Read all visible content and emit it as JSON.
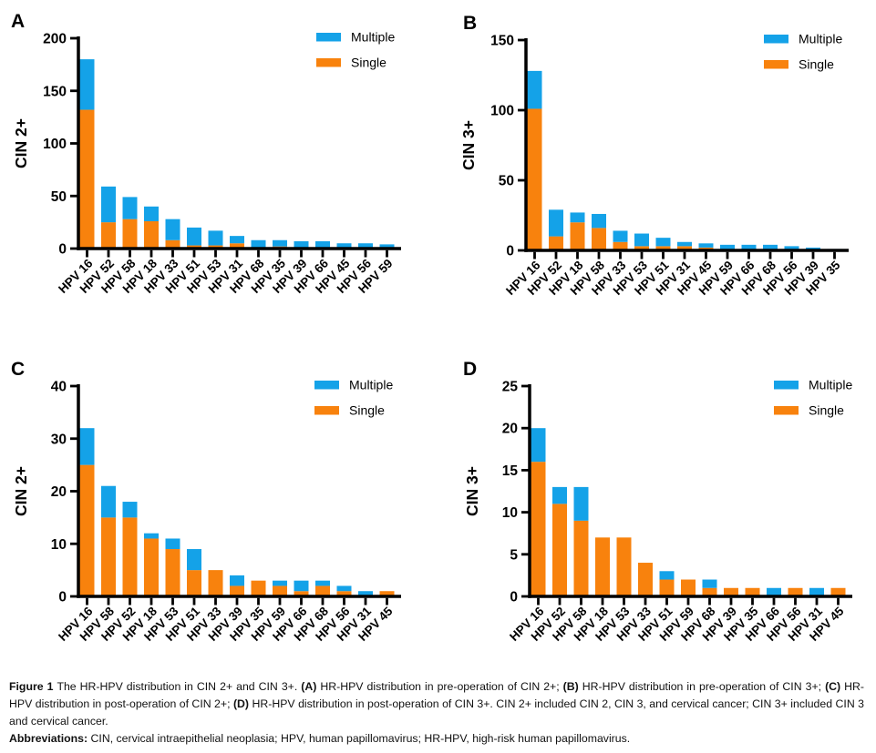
{
  "colors": {
    "multiple": "#14A2E8",
    "single": "#F8820D",
    "axis": "#000000",
    "background": "#FFFFFF",
    "text": "#000000"
  },
  "legend": {
    "items": [
      {
        "label": "Multiple",
        "color": "#14A2E8"
      },
      {
        "label": "Single",
        "color": "#F8820D"
      }
    ]
  },
  "chart_data": [
    {
      "panel": "A",
      "type": "bar",
      "stacked": true,
      "ylabel": "CIN 2+",
      "xlabel": "",
      "ylim": [
        0,
        200
      ],
      "yticks": [
        0,
        50,
        100,
        150,
        200
      ],
      "grid": false,
      "legend": [
        "Multiple",
        "Single"
      ],
      "legend_position": "top-right",
      "categories": [
        "HPV 16",
        "HPV 52",
        "HPV 58",
        "HPV 18",
        "HPV 33",
        "HPV 51",
        "HPV 53",
        "HPV 31",
        "HPV 68",
        "HPV 35",
        "HPV 39",
        "HPV 66",
        "HPV 45",
        "HPV 56",
        "HPV 59"
      ],
      "series": [
        {
          "name": "Single",
          "color": "#F8820D",
          "values": [
            132,
            25,
            28,
            26,
            8,
            3,
            3,
            5,
            0,
            2,
            0,
            0,
            1,
            1,
            0
          ]
        },
        {
          "name": "Multiple",
          "color": "#14A2E8",
          "values": [
            48,
            34,
            21,
            14,
            20,
            17,
            14,
            7,
            8,
            6,
            7,
            7,
            4,
            4,
            4
          ]
        }
      ],
      "totals": [
        180,
        59,
        49,
        40,
        28,
        20,
        17,
        12,
        8,
        8,
        7,
        7,
        5,
        5,
        4
      ]
    },
    {
      "panel": "B",
      "type": "bar",
      "stacked": true,
      "ylabel": "CIN 3+",
      "xlabel": "",
      "ylim": [
        0,
        150
      ],
      "yticks": [
        0,
        50,
        100,
        150
      ],
      "grid": false,
      "legend": [
        "Multiple",
        "Single"
      ],
      "legend_position": "top-right",
      "categories": [
        "HPV 16",
        "HPV 52",
        "HPV 18",
        "HPV 58",
        "HPV 33",
        "HPV 53",
        "HPV 51",
        "HPV 31",
        "HPV 45",
        "HPV 59",
        "HPV 66",
        "HPV 68",
        "HPV 56",
        "HPV 39",
        "HPV 35"
      ],
      "series": [
        {
          "name": "Single",
          "color": "#F8820D",
          "values": [
            101,
            10,
            20,
            16,
            6,
            3,
            3,
            3,
            2,
            1,
            0,
            0,
            0,
            0,
            0
          ]
        },
        {
          "name": "Multiple",
          "color": "#14A2E8",
          "values": [
            27,
            19,
            7,
            10,
            8,
            9,
            6,
            3,
            3,
            3,
            4,
            4,
            3,
            2,
            1
          ]
        }
      ],
      "totals": [
        128,
        29,
        27,
        26,
        14,
        12,
        9,
        6,
        5,
        4,
        4,
        4,
        3,
        2,
        1
      ]
    },
    {
      "panel": "C",
      "type": "bar",
      "stacked": true,
      "ylabel": "CIN 2+",
      "xlabel": "",
      "ylim": [
        0,
        40
      ],
      "yticks": [
        0,
        10,
        20,
        30,
        40
      ],
      "grid": false,
      "legend": [
        "Multiple",
        "Single"
      ],
      "legend_position": "top-right",
      "categories": [
        "HPV 16",
        "HPV 58",
        "HPV 52",
        "HPV 18",
        "HPV 53",
        "HPV 51",
        "HPV 33",
        "HPV 39",
        "HPV 35",
        "HPV 59",
        "HPV 66",
        "HPV 68",
        "HPV 56",
        "HPV 31",
        "HPV 45"
      ],
      "series": [
        {
          "name": "Single",
          "color": "#F8820D",
          "values": [
            25,
            15,
            15,
            11,
            9,
            5,
            5,
            2,
            3,
            2,
            1,
            2,
            1,
            0,
            1
          ]
        },
        {
          "name": "Multiple",
          "color": "#14A2E8",
          "values": [
            7,
            6,
            3,
            1,
            2,
            4,
            0,
            2,
            0,
            1,
            2,
            1,
            1,
            1,
            0
          ]
        }
      ],
      "totals": [
        32,
        21,
        18,
        12,
        11,
        9,
        5,
        4,
        3,
        3,
        3,
        3,
        2,
        1,
        1
      ]
    },
    {
      "panel": "D",
      "type": "bar",
      "stacked": true,
      "ylabel": "CIN 3+",
      "xlabel": "",
      "ylim": [
        0,
        25
      ],
      "yticks": [
        0,
        5,
        10,
        15,
        20,
        25
      ],
      "grid": false,
      "legend": [
        "Multiple",
        "Single"
      ],
      "legend_position": "top-right",
      "categories": [
        "HPV 16",
        "HPV 52",
        "HPV 58",
        "HPV 18",
        "HPV 53",
        "HPV 33",
        "HPV 51",
        "HPV 59",
        "HPV 68",
        "HPV 39",
        "HPV 35",
        "HPV 66",
        "HPV 56",
        "HPV 31",
        "HPV 45"
      ],
      "series": [
        {
          "name": "Single",
          "color": "#F8820D",
          "values": [
            16,
            11,
            9,
            7,
            7,
            4,
            2,
            2,
            1,
            1,
            1,
            0,
            1,
            0,
            1
          ]
        },
        {
          "name": "Multiple",
          "color": "#14A2E8",
          "values": [
            4,
            2,
            4,
            0,
            0,
            0,
            1,
            0,
            1,
            0,
            0,
            1,
            0,
            1,
            0
          ]
        }
      ],
      "totals": [
        20,
        13,
        13,
        7,
        7,
        4,
        3,
        2,
        2,
        1,
        1,
        1,
        1,
        1,
        1
      ]
    }
  ],
  "caption": {
    "main_runs": [
      {
        "bold": true,
        "text": "Figure 1 "
      },
      {
        "bold": false,
        "text": "The HR-HPV distribution in CIN 2+ and CIN 3+. "
      },
      {
        "bold": true,
        "text": "(A)"
      },
      {
        "bold": false,
        "text": " HR-HPV distribution in pre-operation of CIN 2+; "
      },
      {
        "bold": true,
        "text": "(B)"
      },
      {
        "bold": false,
        "text": " HR-HPV distribution in pre-operation of CIN 3+; "
      },
      {
        "bold": true,
        "text": "(C)"
      },
      {
        "bold": false,
        "text": " HR-HPV distribution in post-operation of CIN 2+; "
      },
      {
        "bold": true,
        "text": "(D)"
      },
      {
        "bold": false,
        "text": " HR-HPV distribution in post-operation of CIN 3+. CIN 2+ included CIN 2, CIN 3, and cervical cancer; CIN 3+ included CIN 3 and cervical cancer."
      }
    ],
    "abbrev_runs": [
      {
        "bold": true,
        "text": "Abbreviations: "
      },
      {
        "bold": false,
        "text": "CIN, cervical intraepithelial neoplasia; HPV, human papillomavirus; HR-HPV, high-risk human papillomavirus."
      }
    ]
  }
}
